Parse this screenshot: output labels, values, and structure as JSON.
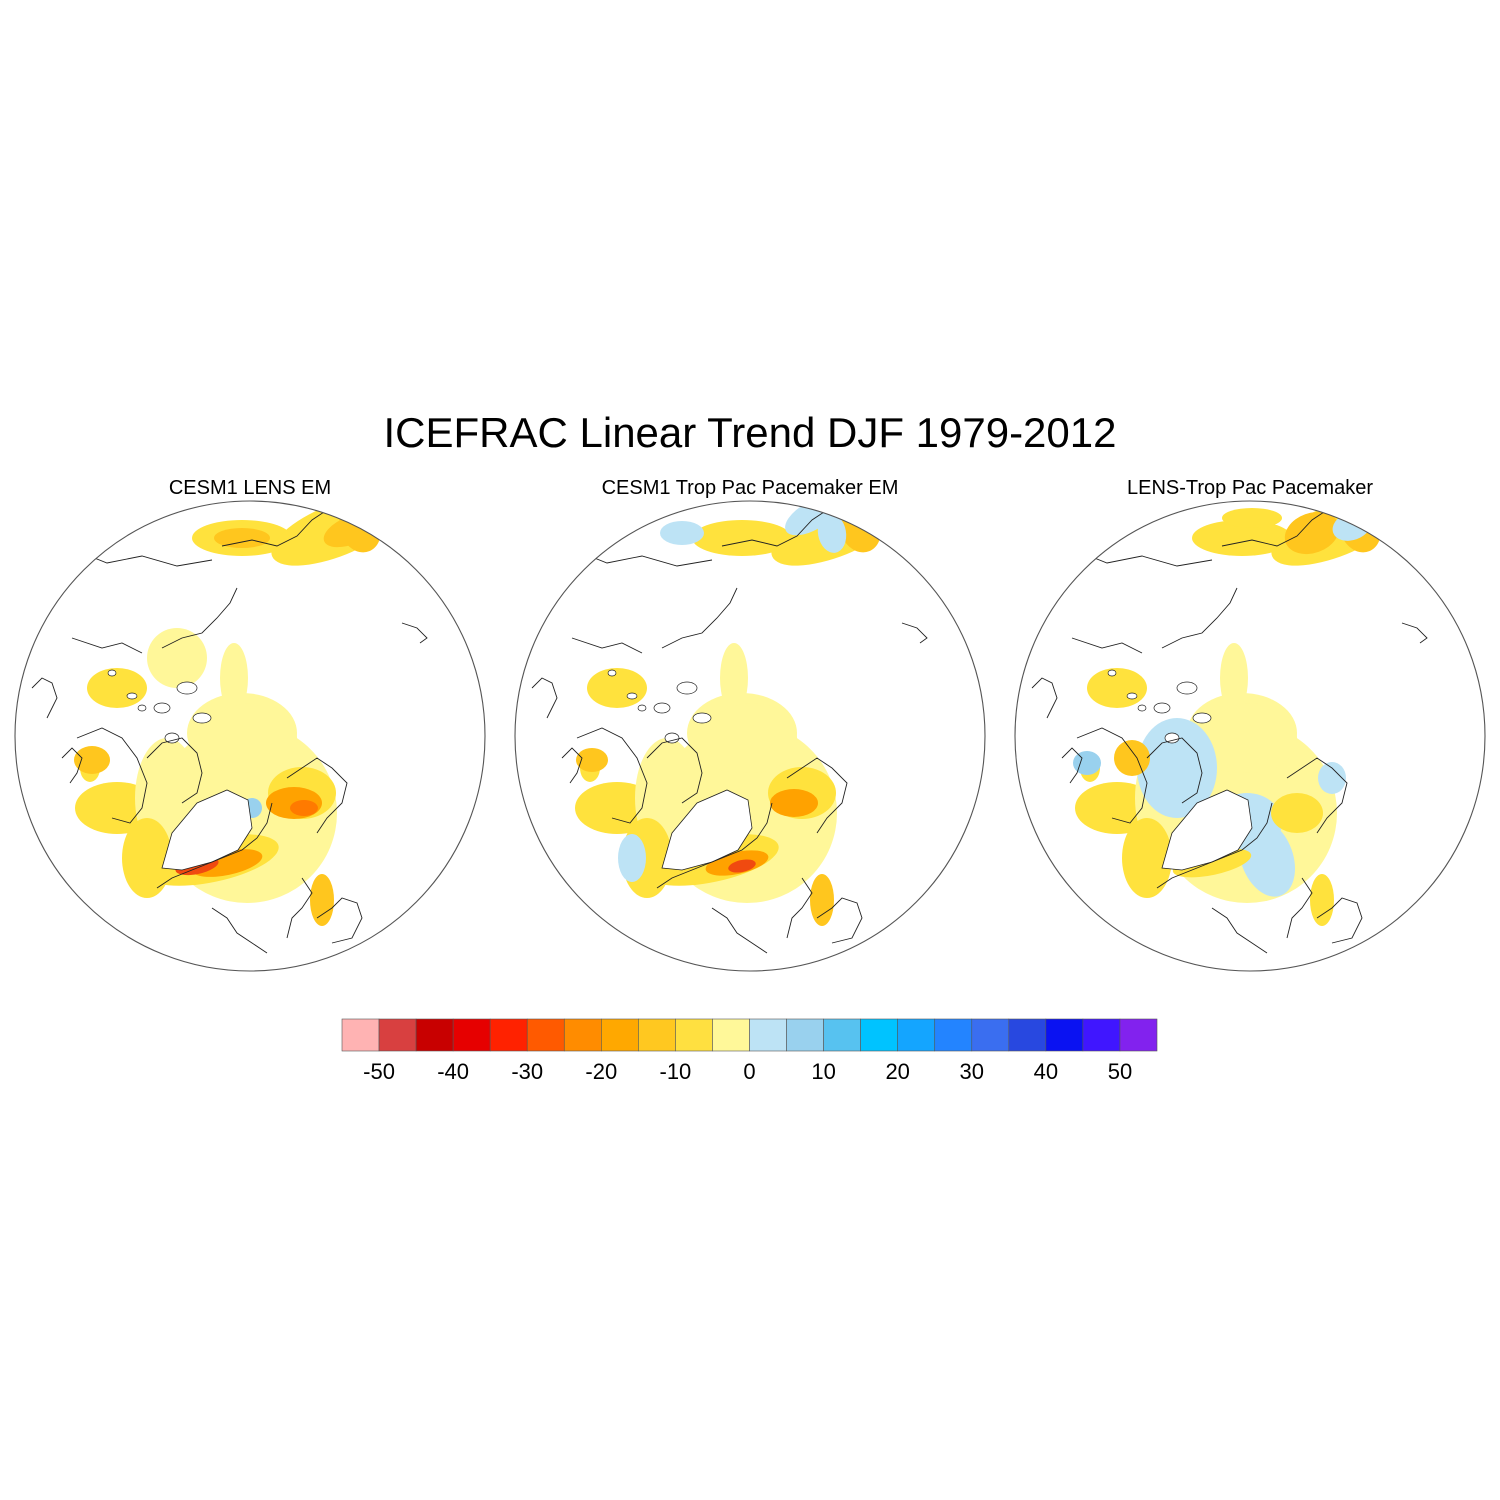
{
  "title": "ICEFRAC Linear Trend DJF 1979-2012",
  "panels": [
    {
      "id": "p1",
      "title": "CESM1 LENS EM"
    },
    {
      "id": "p2",
      "title": "CESM1 Trop Pac Pacemaker EM"
    },
    {
      "id": "p3",
      "title": "LENS-Trop Pac Pacemaker"
    }
  ],
  "colorbar": {
    "colors": [
      "#ffb3b3",
      "#d84040",
      "#c80000",
      "#e60000",
      "#ff2200",
      "#ff5a00",
      "#ff8c00",
      "#ffa800",
      "#ffc820",
      "#ffe040",
      "#fff899",
      "#bde3f5",
      "#99d1ee",
      "#57c2f0",
      "#00c3ff",
      "#14a5ff",
      "#2384ff",
      "#3a6ef0",
      "#2848e0",
      "#0a12f2",
      "#4016ff",
      "#8222ee"
    ],
    "tick_labels": [
      "-50",
      "-40",
      "-30",
      "-20",
      "-10",
      "0",
      "10",
      "20",
      "30",
      "40",
      "50"
    ],
    "tick_values": [
      -50,
      -40,
      -30,
      -20,
      -10,
      0,
      10,
      20,
      30,
      40,
      50
    ],
    "min": -55,
    "max": 55,
    "interval": 5
  }
}
